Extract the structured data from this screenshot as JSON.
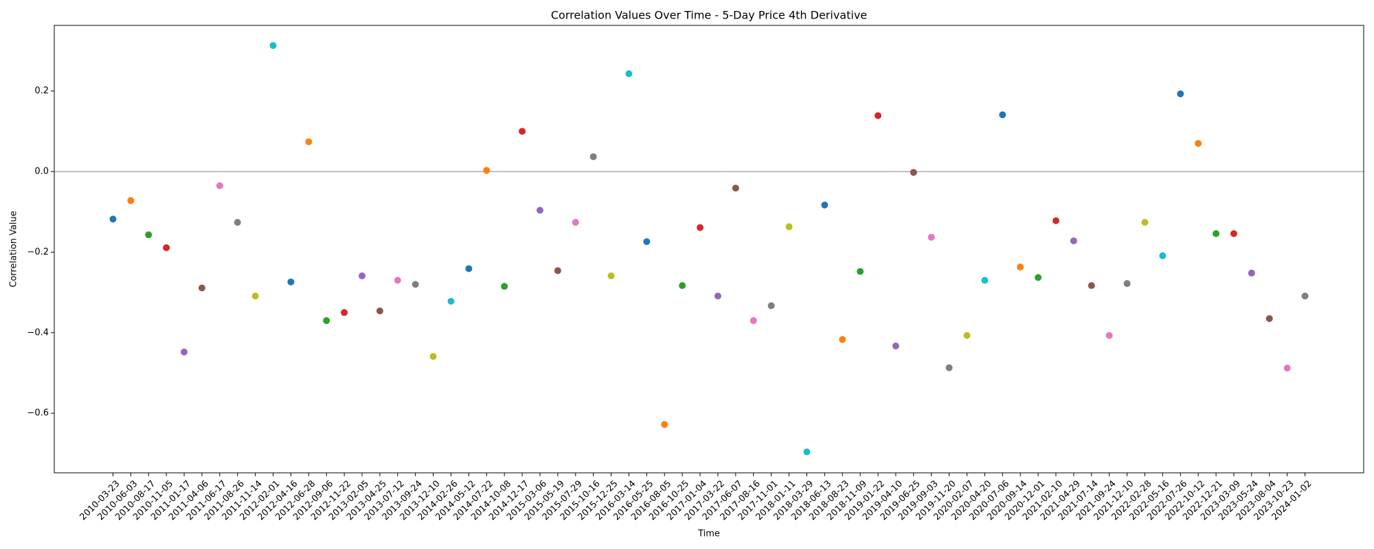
{
  "chart_data": {
    "type": "scatter",
    "title": "Correlation Values Over Time - 5-Day Price 4th Derivative",
    "x_label": "Time",
    "y_label": "Correlation Value",
    "categories": [
      "2010-03-23",
      "2010-06-03",
      "2010-08-17",
      "2010-11-05",
      "2011-01-17",
      "2011-04-06",
      "2011-06-17",
      "2011-08-26",
      "2011-11-14",
      "2012-02-01",
      "2012-04-16",
      "2012-06-28",
      "2012-09-06",
      "2012-11-22",
      "2013-02-05",
      "2013-04-25",
      "2013-07-12",
      "2013-09-24",
      "2013-12-10",
      "2014-02-26",
      "2014-05-12",
      "2014-07-22",
      "2014-10-08",
      "2014-12-17",
      "2015-03-06",
      "2015-05-19",
      "2015-07-29",
      "2015-10-16",
      "2015-12-25",
      "2016-03-14",
      "2016-05-25",
      "2016-08-05",
      "2016-10-25",
      "2017-01-04",
      "2017-03-22",
      "2017-06-07",
      "2017-08-16",
      "2017-11-01",
      "2018-01-11",
      "2018-03-29",
      "2018-06-13",
      "2018-08-23",
      "2018-11-09",
      "2019-01-22",
      "2019-04-10",
      "2019-06-25",
      "2019-09-03",
      "2019-11-20",
      "2020-02-07",
      "2020-04-20",
      "2020-07-06",
      "2020-09-14",
      "2020-12-01",
      "2021-02-10",
      "2021-04-29",
      "2021-07-14",
      "2021-09-24",
      "2021-12-10",
      "2022-02-28",
      "2022-05-16",
      "2022-07-26",
      "2022-10-12",
      "2022-12-21",
      "2023-03-09",
      "2023-05-24",
      "2023-08-04",
      "2023-10-23",
      "2024-01-02"
    ],
    "values": [
      -0.118,
      -0.072,
      -0.157,
      -0.189,
      -0.448,
      -0.289,
      -0.035,
      -0.126,
      -0.309,
      0.313,
      -0.274,
      0.074,
      -0.37,
      -0.35,
      -0.259,
      -0.346,
      -0.27,
      -0.28,
      -0.459,
      -0.322,
      -0.241,
      0.003,
      -0.285,
      0.1,
      -0.096,
      -0.246,
      -0.126,
      0.037,
      -0.259,
      0.243,
      -0.174,
      -0.628,
      -0.283,
      -0.139,
      -0.309,
      -0.041,
      -0.37,
      -0.333,
      -0.137,
      -0.696,
      -0.083,
      -0.417,
      -0.248,
      0.139,
      -0.433,
      -0.002,
      -0.163,
      -0.487,
      -0.407,
      -0.27,
      0.141,
      -0.237,
      -0.263,
      -0.122,
      -0.172,
      -0.283,
      -0.407,
      -0.278,
      -0.126,
      -0.209,
      0.193,
      0.07,
      -0.154,
      -0.154,
      -0.252,
      -0.365,
      -0.488,
      -0.309
    ],
    "colors": [
      "#1f77b4",
      "#ff7f0e",
      "#2ca02c",
      "#d62728",
      "#9467bd",
      "#8c564b",
      "#e377c2",
      "#7f7f7f",
      "#bcbd22",
      "#17becf"
    ],
    "ylim": [
      -0.748,
      0.363
    ],
    "yticks": [
      {
        "value": -0.6,
        "label": "−0.6"
      },
      {
        "value": -0.4,
        "label": "−0.4"
      },
      {
        "value": -0.2,
        "label": "−0.2"
      },
      {
        "value": 0,
        "label": "0.0"
      },
      {
        "value": 0.2,
        "label": "0.2"
      }
    ],
    "reference_line": 0,
    "reference_color": "#808080"
  }
}
